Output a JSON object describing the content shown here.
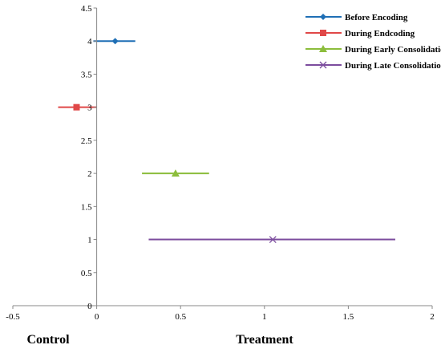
{
  "chart_data": {
    "type": "scatter",
    "title": "",
    "xlabel": "",
    "ylabel": "",
    "xlim": [
      -0.5,
      2
    ],
    "ylim": [
      0,
      4.5
    ],
    "xticks": [
      -0.5,
      0,
      0.5,
      1,
      1.5,
      2
    ],
    "yticks": [
      0,
      0.5,
      1,
      1.5,
      2,
      2.5,
      3,
      3.5,
      4,
      4.5
    ],
    "x_tick_labels": [
      "-0.5",
      "0",
      "0.5",
      "1",
      "1.5",
      "2"
    ],
    "y_tick_labels": [
      "0",
      "0.5",
      "1",
      "1.5",
      "2",
      "2.5",
      "3",
      "3.5",
      "4",
      "4.5"
    ],
    "category_labels": [
      "Control",
      "Treatment"
    ],
    "grid": false,
    "legend_position": "top-right",
    "series": [
      {
        "name": "Before Encoding",
        "x": 0.11,
        "y": 4,
        "x_low": -0.02,
        "x_high": 0.23,
        "color": "#1f6fb5",
        "marker": "diamond"
      },
      {
        "name": "During Endcoding",
        "x": -0.12,
        "y": 3,
        "x_low": -0.23,
        "x_high": 0.0,
        "color": "#e04848",
        "marker": "square"
      },
      {
        "name": "During Early Consolidation",
        "x": 0.47,
        "y": 2,
        "x_low": 0.27,
        "x_high": 0.67,
        "color": "#8cbd3c",
        "marker": "triangle"
      },
      {
        "name": "During Late Consolidation",
        "x": 1.05,
        "y": 1,
        "x_low": 0.31,
        "x_high": 1.78,
        "color": "#7c4d9e",
        "marker": "x"
      }
    ]
  }
}
